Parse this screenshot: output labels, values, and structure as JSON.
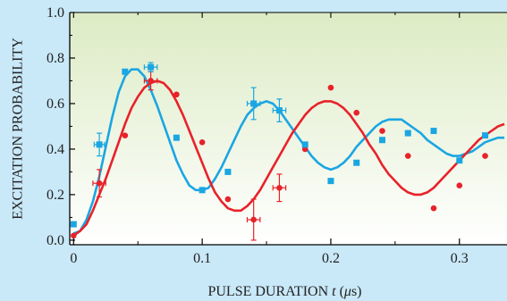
{
  "chart_data": {
    "type": "scatter",
    "title": "",
    "xlabel_prefix": "PULSE DURATION ",
    "xlabel_var": "t",
    "xlabel_units_open": " (",
    "xlabel_units_mu": "μ",
    "xlabel_units_close": "s)",
    "ylabel": "EXCITATION PROBABILITY",
    "xlim": [
      -0.003,
      0.337
    ],
    "ylim": [
      -0.02,
      1.0
    ],
    "grid": false,
    "legend": "none",
    "x_ticks": [
      0,
      0.1,
      0.2,
      0.3
    ],
    "x_tick_labels": [
      "0",
      "0.1",
      "0.2",
      "0.3"
    ],
    "y_ticks": [
      0.0,
      0.2,
      0.4,
      0.6,
      0.8,
      1.0
    ],
    "y_tick_labels": [
      "0.0",
      "0.2",
      "0.4",
      "0.6",
      "0.8",
      "1.0"
    ],
    "colors": {
      "blue": "#1aa6e2",
      "red": "#e8222a",
      "plot_bg_top": "#dcebc4",
      "plot_bg_bottom": "#ffffff",
      "outer_bg": "#c9e8f8"
    },
    "series": [
      {
        "color": "#1aa6e2",
        "marker": "square",
        "points": [
          {
            "x": 0.0,
            "y": 0.07
          },
          {
            "x": 0.02,
            "y": 0.42,
            "yerr": 0.05,
            "xerr": 0.004
          },
          {
            "x": 0.04,
            "y": 0.74
          },
          {
            "x": 0.06,
            "y": 0.76,
            "yerr": 0.02,
            "xerr": 0.005
          },
          {
            "x": 0.08,
            "y": 0.45
          },
          {
            "x": 0.1,
            "y": 0.22
          },
          {
            "x": 0.12,
            "y": 0.3
          },
          {
            "x": 0.14,
            "y": 0.6,
            "yerr": 0.07,
            "xerr": 0.005
          },
          {
            "x": 0.16,
            "y": 0.57,
            "yerr": 0.05,
            "xerr": 0.005
          },
          {
            "x": 0.18,
            "y": 0.42
          },
          {
            "x": 0.2,
            "y": 0.26
          },
          {
            "x": 0.22,
            "y": 0.34
          },
          {
            "x": 0.24,
            "y": 0.44
          },
          {
            "x": 0.26,
            "y": 0.47
          },
          {
            "x": 0.28,
            "y": 0.48
          },
          {
            "x": 0.3,
            "y": 0.35
          },
          {
            "x": 0.32,
            "y": 0.46
          }
        ],
        "fit": [
          {
            "x": 0.0,
            "y": 0.03
          },
          {
            "x": 0.005,
            "y": 0.04
          },
          {
            "x": 0.01,
            "y": 0.09
          },
          {
            "x": 0.015,
            "y": 0.17
          },
          {
            "x": 0.02,
            "y": 0.28
          },
          {
            "x": 0.025,
            "y": 0.41
          },
          {
            "x": 0.03,
            "y": 0.54
          },
          {
            "x": 0.035,
            "y": 0.65
          },
          {
            "x": 0.04,
            "y": 0.72
          },
          {
            "x": 0.045,
            "y": 0.75
          },
          {
            "x": 0.05,
            "y": 0.75
          },
          {
            "x": 0.055,
            "y": 0.72
          },
          {
            "x": 0.06,
            "y": 0.66
          },
          {
            "x": 0.065,
            "y": 0.59
          },
          {
            "x": 0.07,
            "y": 0.51
          },
          {
            "x": 0.075,
            "y": 0.43
          },
          {
            "x": 0.08,
            "y": 0.35
          },
          {
            "x": 0.085,
            "y": 0.29
          },
          {
            "x": 0.09,
            "y": 0.24
          },
          {
            "x": 0.095,
            "y": 0.22
          },
          {
            "x": 0.1,
            "y": 0.22
          },
          {
            "x": 0.105,
            "y": 0.23
          },
          {
            "x": 0.11,
            "y": 0.27
          },
          {
            "x": 0.115,
            "y": 0.32
          },
          {
            "x": 0.12,
            "y": 0.38
          },
          {
            "x": 0.125,
            "y": 0.44
          },
          {
            "x": 0.13,
            "y": 0.5
          },
          {
            "x": 0.135,
            "y": 0.55
          },
          {
            "x": 0.14,
            "y": 0.58
          },
          {
            "x": 0.145,
            "y": 0.6
          },
          {
            "x": 0.15,
            "y": 0.61
          },
          {
            "x": 0.155,
            "y": 0.6
          },
          {
            "x": 0.16,
            "y": 0.57
          },
          {
            "x": 0.165,
            "y": 0.53
          },
          {
            "x": 0.17,
            "y": 0.49
          },
          {
            "x": 0.175,
            "y": 0.45
          },
          {
            "x": 0.18,
            "y": 0.41
          },
          {
            "x": 0.185,
            "y": 0.37
          },
          {
            "x": 0.19,
            "y": 0.34
          },
          {
            "x": 0.195,
            "y": 0.32
          },
          {
            "x": 0.2,
            "y": 0.31
          },
          {
            "x": 0.205,
            "y": 0.32
          },
          {
            "x": 0.21,
            "y": 0.34
          },
          {
            "x": 0.215,
            "y": 0.37
          },
          {
            "x": 0.22,
            "y": 0.41
          },
          {
            "x": 0.225,
            "y": 0.44
          },
          {
            "x": 0.23,
            "y": 0.47
          },
          {
            "x": 0.235,
            "y": 0.5
          },
          {
            "x": 0.24,
            "y": 0.52
          },
          {
            "x": 0.245,
            "y": 0.53
          },
          {
            "x": 0.25,
            "y": 0.53
          },
          {
            "x": 0.255,
            "y": 0.53
          },
          {
            "x": 0.26,
            "y": 0.51
          },
          {
            "x": 0.265,
            "y": 0.49
          },
          {
            "x": 0.27,
            "y": 0.47
          },
          {
            "x": 0.275,
            "y": 0.44
          },
          {
            "x": 0.28,
            "y": 0.42
          },
          {
            "x": 0.285,
            "y": 0.4
          },
          {
            "x": 0.29,
            "y": 0.38
          },
          {
            "x": 0.295,
            "y": 0.37
          },
          {
            "x": 0.3,
            "y": 0.37
          },
          {
            "x": 0.305,
            "y": 0.38
          },
          {
            "x": 0.31,
            "y": 0.39
          },
          {
            "x": 0.315,
            "y": 0.41
          },
          {
            "x": 0.32,
            "y": 0.43
          },
          {
            "x": 0.325,
            "y": 0.44
          },
          {
            "x": 0.33,
            "y": 0.45
          },
          {
            "x": 0.335,
            "y": 0.45
          }
        ]
      },
      {
        "color": "#e8222a",
        "marker": "circle",
        "points": [
          {
            "x": 0.0,
            "y": 0.02
          },
          {
            "x": 0.02,
            "y": 0.25,
            "yerr": 0.06,
            "xerr": 0.005
          },
          {
            "x": 0.04,
            "y": 0.46
          },
          {
            "x": 0.06,
            "y": 0.7,
            "yerr": 0.04,
            "xerr": 0.005
          },
          {
            "x": 0.08,
            "y": 0.64
          },
          {
            "x": 0.1,
            "y": 0.43
          },
          {
            "x": 0.12,
            "y": 0.18
          },
          {
            "x": 0.14,
            "y": 0.09,
            "yerr": 0.09,
            "xerr": 0.005
          },
          {
            "x": 0.16,
            "y": 0.23,
            "yerr": 0.06,
            "xerr": 0.005
          },
          {
            "x": 0.18,
            "y": 0.4
          },
          {
            "x": 0.2,
            "y": 0.67
          },
          {
            "x": 0.22,
            "y": 0.56
          },
          {
            "x": 0.24,
            "y": 0.48
          },
          {
            "x": 0.26,
            "y": 0.37
          },
          {
            "x": 0.28,
            "y": 0.14
          },
          {
            "x": 0.3,
            "y": 0.24
          },
          {
            "x": 0.32,
            "y": 0.37
          }
        ],
        "fit": [
          {
            "x": 0.0,
            "y": 0.02
          },
          {
            "x": 0.005,
            "y": 0.04
          },
          {
            "x": 0.01,
            "y": 0.07
          },
          {
            "x": 0.015,
            "y": 0.13
          },
          {
            "x": 0.02,
            "y": 0.2
          },
          {
            "x": 0.025,
            "y": 0.27
          },
          {
            "x": 0.03,
            "y": 0.35
          },
          {
            "x": 0.035,
            "y": 0.43
          },
          {
            "x": 0.04,
            "y": 0.51
          },
          {
            "x": 0.045,
            "y": 0.58
          },
          {
            "x": 0.05,
            "y": 0.63
          },
          {
            "x": 0.055,
            "y": 0.67
          },
          {
            "x": 0.06,
            "y": 0.69
          },
          {
            "x": 0.065,
            "y": 0.7
          },
          {
            "x": 0.07,
            "y": 0.69
          },
          {
            "x": 0.075,
            "y": 0.66
          },
          {
            "x": 0.08,
            "y": 0.61
          },
          {
            "x": 0.085,
            "y": 0.55
          },
          {
            "x": 0.09,
            "y": 0.48
          },
          {
            "x": 0.095,
            "y": 0.41
          },
          {
            "x": 0.1,
            "y": 0.34
          },
          {
            "x": 0.105,
            "y": 0.27
          },
          {
            "x": 0.11,
            "y": 0.21
          },
          {
            "x": 0.115,
            "y": 0.17
          },
          {
            "x": 0.12,
            "y": 0.14
          },
          {
            "x": 0.125,
            "y": 0.13
          },
          {
            "x": 0.13,
            "y": 0.13
          },
          {
            "x": 0.135,
            "y": 0.15
          },
          {
            "x": 0.14,
            "y": 0.18
          },
          {
            "x": 0.145,
            "y": 0.22
          },
          {
            "x": 0.15,
            "y": 0.27
          },
          {
            "x": 0.155,
            "y": 0.32
          },
          {
            "x": 0.16,
            "y": 0.37
          },
          {
            "x": 0.165,
            "y": 0.42
          },
          {
            "x": 0.17,
            "y": 0.47
          },
          {
            "x": 0.175,
            "y": 0.51
          },
          {
            "x": 0.18,
            "y": 0.55
          },
          {
            "x": 0.185,
            "y": 0.58
          },
          {
            "x": 0.19,
            "y": 0.6
          },
          {
            "x": 0.195,
            "y": 0.61
          },
          {
            "x": 0.2,
            "y": 0.61
          },
          {
            "x": 0.205,
            "y": 0.6
          },
          {
            "x": 0.21,
            "y": 0.58
          },
          {
            "x": 0.215,
            "y": 0.55
          },
          {
            "x": 0.22,
            "y": 0.51
          },
          {
            "x": 0.225,
            "y": 0.47
          },
          {
            "x": 0.23,
            "y": 0.42
          },
          {
            "x": 0.235,
            "y": 0.38
          },
          {
            "x": 0.24,
            "y": 0.33
          },
          {
            "x": 0.245,
            "y": 0.29
          },
          {
            "x": 0.25,
            "y": 0.26
          },
          {
            "x": 0.255,
            "y": 0.23
          },
          {
            "x": 0.26,
            "y": 0.21
          },
          {
            "x": 0.265,
            "y": 0.2
          },
          {
            "x": 0.27,
            "y": 0.2
          },
          {
            "x": 0.275,
            "y": 0.21
          },
          {
            "x": 0.28,
            "y": 0.23
          },
          {
            "x": 0.285,
            "y": 0.26
          },
          {
            "x": 0.29,
            "y": 0.29
          },
          {
            "x": 0.295,
            "y": 0.32
          },
          {
            "x": 0.3,
            "y": 0.35
          },
          {
            "x": 0.305,
            "y": 0.38
          },
          {
            "x": 0.31,
            "y": 0.41
          },
          {
            "x": 0.315,
            "y": 0.44
          },
          {
            "x": 0.32,
            "y": 0.46
          },
          {
            "x": 0.325,
            "y": 0.48
          },
          {
            "x": 0.33,
            "y": 0.5
          },
          {
            "x": 0.335,
            "y": 0.51
          }
        ]
      }
    ]
  }
}
